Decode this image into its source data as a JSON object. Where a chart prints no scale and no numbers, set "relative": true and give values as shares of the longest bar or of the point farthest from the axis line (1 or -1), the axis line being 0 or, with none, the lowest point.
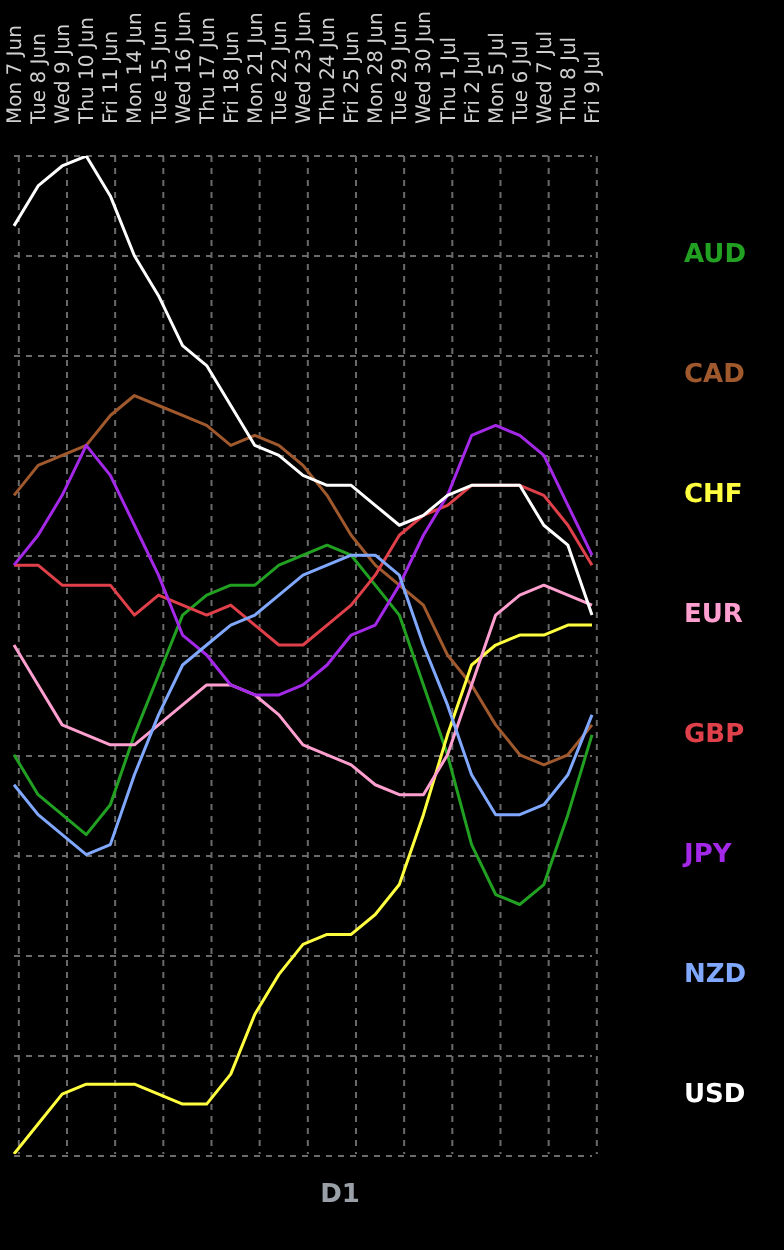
{
  "chart_data": {
    "type": "line",
    "relative": true,
    "categories": [
      "Mon 7 Jun",
      "Tue 8 Jun",
      "Wed 9 Jun",
      "Thu 10 Jun",
      "Fri 11 Jun",
      "Mon 14 Jun",
      "Tue 15 Jun",
      "Wed 16 Jun",
      "Thu 17 Jun",
      "Fri 18 Jun",
      "Mon 21 Jun",
      "Tue 22 Jun",
      "Wed 23 Jun",
      "Thu 24 Jun",
      "Fri 25 Jun",
      "Mon 28 Jun",
      "Tue 29 Jun",
      "Wed 30 Jun",
      "Thu 1 Jul",
      "Fri 2 Jul",
      "Mon 5 Jul",
      "Tue 6 Jul",
      "Wed 7 Jul",
      "Thu 8 Jul",
      "Fri 9 Jul"
    ],
    "series": [
      {
        "name": "AUD",
        "color": "#22a022",
        "values": [
          0.4,
          0.36,
          0.34,
          0.32,
          0.35,
          0.42,
          0.48,
          0.54,
          0.56,
          0.57,
          0.57,
          0.59,
          0.6,
          0.61,
          0.6,
          0.57,
          0.54,
          0.47,
          0.4,
          0.31,
          0.26,
          0.25,
          0.27,
          0.34,
          0.42
        ]
      },
      {
        "name": "CAD",
        "color": "#a0582d",
        "values": [
          0.66,
          0.69,
          0.7,
          0.71,
          0.74,
          0.76,
          0.75,
          0.74,
          0.73,
          0.71,
          0.72,
          0.71,
          0.69,
          0.66,
          0.62,
          0.59,
          0.57,
          0.55,
          0.5,
          0.47,
          0.43,
          0.4,
          0.39,
          0.4,
          0.43
        ]
      },
      {
        "name": "CHF",
        "color": "#ffff40",
        "values": [
          0,
          0.03,
          0.06,
          0.07,
          0.07,
          0.07,
          0.06,
          0.05,
          0.05,
          0.08,
          0.14,
          0.18,
          0.21,
          0.22,
          0.22,
          0.24,
          0.27,
          0.34,
          0.42,
          0.49,
          0.51,
          0.52,
          0.52,
          0.53,
          0.53
        ]
      },
      {
        "name": "EUR",
        "color": "#ff9fcf",
        "values": [
          0.51,
          0.47,
          0.43,
          0.42,
          0.41,
          0.41,
          0.43,
          0.45,
          0.47,
          0.47,
          0.46,
          0.44,
          0.41,
          0.4,
          0.39,
          0.37,
          0.36,
          0.36,
          0.4,
          0.47,
          0.54,
          0.56,
          0.57,
          0.56,
          0.55
        ]
      },
      {
        "name": "GBP",
        "color": "#e0404a",
        "values": [
          0.59,
          0.59,
          0.57,
          0.57,
          0.57,
          0.54,
          0.56,
          0.55,
          0.54,
          0.55,
          0.53,
          0.51,
          0.51,
          0.53,
          0.55,
          0.58,
          0.62,
          0.64,
          0.65,
          0.67,
          0.67,
          0.67,
          0.66,
          0.63,
          0.59
        ]
      },
      {
        "name": "JPY",
        "color": "#a428e8",
        "values": [
          0.59,
          0.62,
          0.66,
          0.71,
          0.68,
          0.63,
          0.58,
          0.52,
          0.5,
          0.47,
          0.46,
          0.46,
          0.47,
          0.49,
          0.52,
          0.53,
          0.57,
          0.62,
          0.66,
          0.72,
          0.73,
          0.72,
          0.7,
          0.65,
          0.6
        ]
      },
      {
        "name": "NZD",
        "color": "#80a8ff",
        "values": [
          0.37,
          0.34,
          0.32,
          0.3,
          0.31,
          0.38,
          0.44,
          0.49,
          0.51,
          0.53,
          0.54,
          0.56,
          0.58,
          0.59,
          0.6,
          0.6,
          0.58,
          0.51,
          0.45,
          0.38,
          0.34,
          0.34,
          0.35,
          0.38,
          0.44
        ]
      },
      {
        "name": "USD",
        "color": "#ffffff",
        "values": [
          0.93,
          0.97,
          0.99,
          1,
          0.96,
          0.9,
          0.86,
          0.81,
          0.79,
          0.75,
          0.71,
          0.7,
          0.68,
          0.67,
          0.67,
          0.65,
          0.63,
          0.64,
          0.66,
          0.67,
          0.67,
          0.67,
          0.63,
          0.61,
          0.54
        ]
      }
    ],
    "grid": true,
    "marker": "none",
    "line_style": "solid",
    "annotations": [
      "D1"
    ]
  }
}
